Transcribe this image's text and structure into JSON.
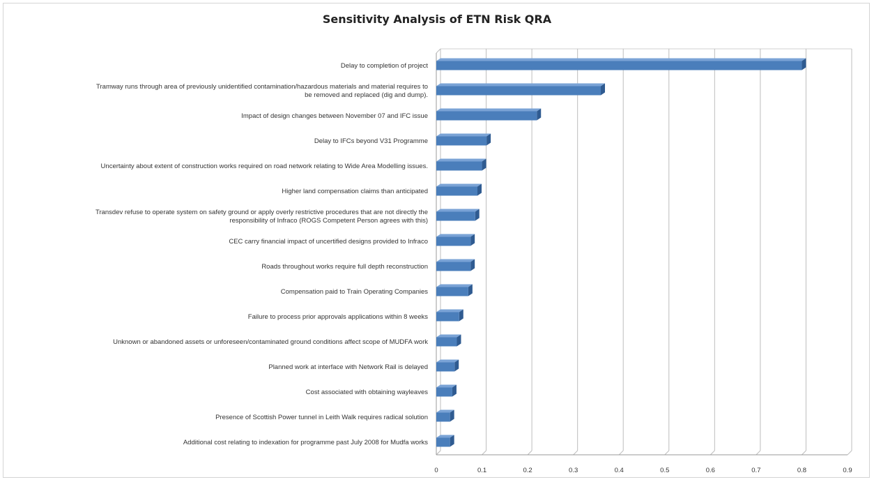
{
  "chart_data": {
    "type": "bar",
    "orientation": "horizontal",
    "title": "Sensitivity Analysis of ETN Risk QRA",
    "xlabel": "",
    "ylabel": "",
    "xlim": [
      0,
      0.9
    ],
    "grid": true,
    "legend": "none",
    "bar_color": "#4a7ebb",
    "x_ticks": [
      "0",
      "0.1",
      "0.2",
      "0.3",
      "0.4",
      "0.5",
      "0.6",
      "0.7",
      "0.8",
      "0.9"
    ],
    "categories": [
      [
        "Delay to completion of project"
      ],
      [
        "Tramway runs through area of previously unidentified contamination/hazardous materials and material requires to",
        "be removed and replaced (dig and dump)."
      ],
      [
        "Impact of design changes between November 07 and IFC issue"
      ],
      [
        "Delay to IFCs beyond V31 Programme"
      ],
      [
        "Uncertainty about extent of construction works required on road network relating to Wide Area Modelling issues."
      ],
      [
        "Higher land compensation claims than anticipated"
      ],
      [
        "Transdev refuse to operate system on safety ground or apply overly restrictive procedures that are not directly the",
        "responsibility of Infraco (ROGS Competent Person agrees with this)"
      ],
      [
        "CEC carry financial impact of uncertified designs provided to Infraco"
      ],
      [
        "Roads throughout works require full depth reconstruction"
      ],
      [
        "Compensation paid to Train Operating Companies"
      ],
      [
        "Failure to process prior approvals applications within 8 weeks"
      ],
      [
        "Unknown or abandoned assets or unforeseen/contaminated ground conditions affect scope of MUDFA work"
      ],
      [
        "Planned work at interface with Network Rail is delayed"
      ],
      [
        "Cost associated with obtaining wayleaves"
      ],
      [
        "Presence of Scottish Power tunnel in Leith Walk requires radical solution"
      ],
      [
        "Additional cost relating to indexation for programme past July 2008 for Mudfa works"
      ]
    ],
    "values": [
      0.8,
      0.36,
      0.22,
      0.11,
      0.1,
      0.09,
      0.085,
      0.075,
      0.075,
      0.07,
      0.05,
      0.045,
      0.04,
      0.035,
      0.03,
      0.03
    ]
  }
}
